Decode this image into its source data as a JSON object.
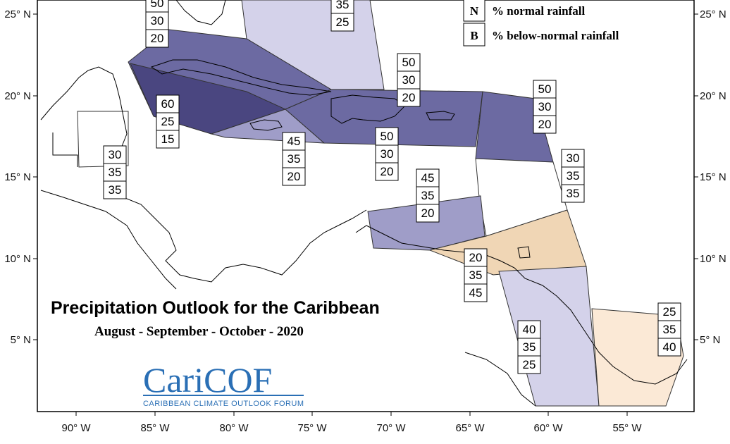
{
  "title": "Precipitation Outlook for the Caribbean",
  "subtitle": "August - September - October - 2020",
  "legend": [
    {
      "code": "N",
      "label": "% normal rainfall"
    },
    {
      "code": "B",
      "label": "% below-normal rainfall"
    }
  ],
  "logo": {
    "name_prefix": "Cari",
    "name_suffix": "COF",
    "tagline": "CARIBBEAN CLIMATE OUTLOOK FORUM"
  },
  "axes": {
    "x_ticks": [
      "90° W",
      "85° W",
      "80° W",
      "75° W",
      "70° W",
      "65° W",
      "60° W",
      "55° W"
    ],
    "y_ticks": [
      "25° N",
      "20° N",
      "15° N",
      "10° N",
      "5° N"
    ]
  },
  "colors": {
    "above_60": "#4a4680",
    "above_50": "#6c6aa2",
    "above_45": "#9f9dc8",
    "above_40": "#cfcde6",
    "above_35": "#d4d2ea",
    "below_45": "#f0d6b5",
    "below_40": "#fbe9d6",
    "border": "#333333"
  },
  "outlooks": [
    {
      "values": [
        "50",
        "30",
        "20"
      ]
    },
    {
      "values": [
        "35",
        "25"
      ]
    },
    {
      "values": [
        "60",
        "25",
        "15"
      ]
    },
    {
      "values": [
        "30",
        "35",
        "35"
      ]
    },
    {
      "values": [
        "45",
        "35",
        "20"
      ]
    },
    {
      "values": [
        "50",
        "30",
        "20"
      ]
    },
    {
      "values": [
        "50",
        "30",
        "20"
      ]
    },
    {
      "values": [
        "50",
        "30",
        "20"
      ]
    },
    {
      "values": [
        "30",
        "35",
        "35"
      ]
    },
    {
      "values": [
        "45",
        "35",
        "20"
      ]
    },
    {
      "values": [
        "20",
        "35",
        "45"
      ]
    },
    {
      "values": [
        "40",
        "35",
        "25"
      ]
    },
    {
      "values": [
        "25",
        "35",
        "40"
      ]
    }
  ]
}
